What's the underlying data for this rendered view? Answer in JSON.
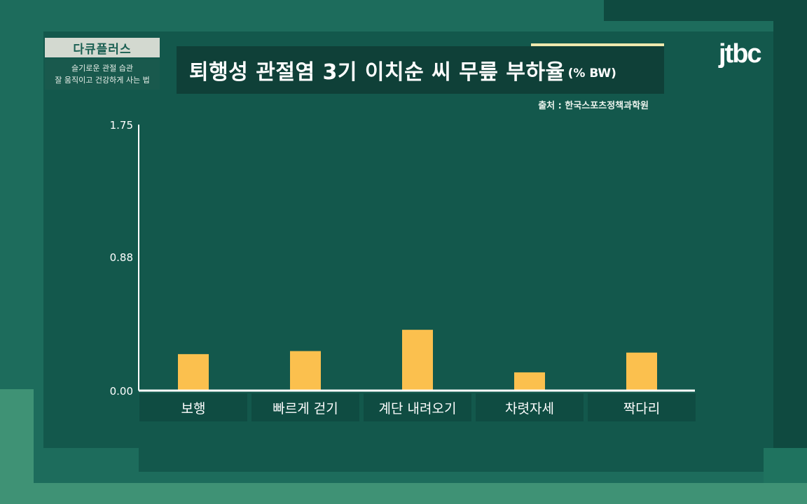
{
  "badge": {
    "title": "다큐플러스",
    "subtitle_line1": "슬기로운 관절 습관",
    "subtitle_line2": "잘 움직이고 건강하게 사는 법"
  },
  "logo": "jtbc",
  "source": "출처 : 한국스포츠정책과학원",
  "colors": {
    "bar": "#fbc04e",
    "axis": "#ffffff",
    "background": "#1d6c5c"
  },
  "chart_data": {
    "type": "bar",
    "title": "퇴행성 관절염 3기 이치순 씨 무릎 부하율",
    "unit": "(% BW)",
    "categories": [
      "보행",
      "빠르게 걷기",
      "계단 내려오기",
      "차렷자세",
      "짝다리"
    ],
    "values": [
      0.24,
      0.26,
      0.4,
      0.12,
      0.25
    ],
    "ylim": [
      0,
      1.75
    ],
    "yticks": [
      "0.00",
      "0.88",
      "1.75"
    ],
    "ytick_values": [
      0,
      0.88,
      1.75
    ],
    "grid": false
  }
}
